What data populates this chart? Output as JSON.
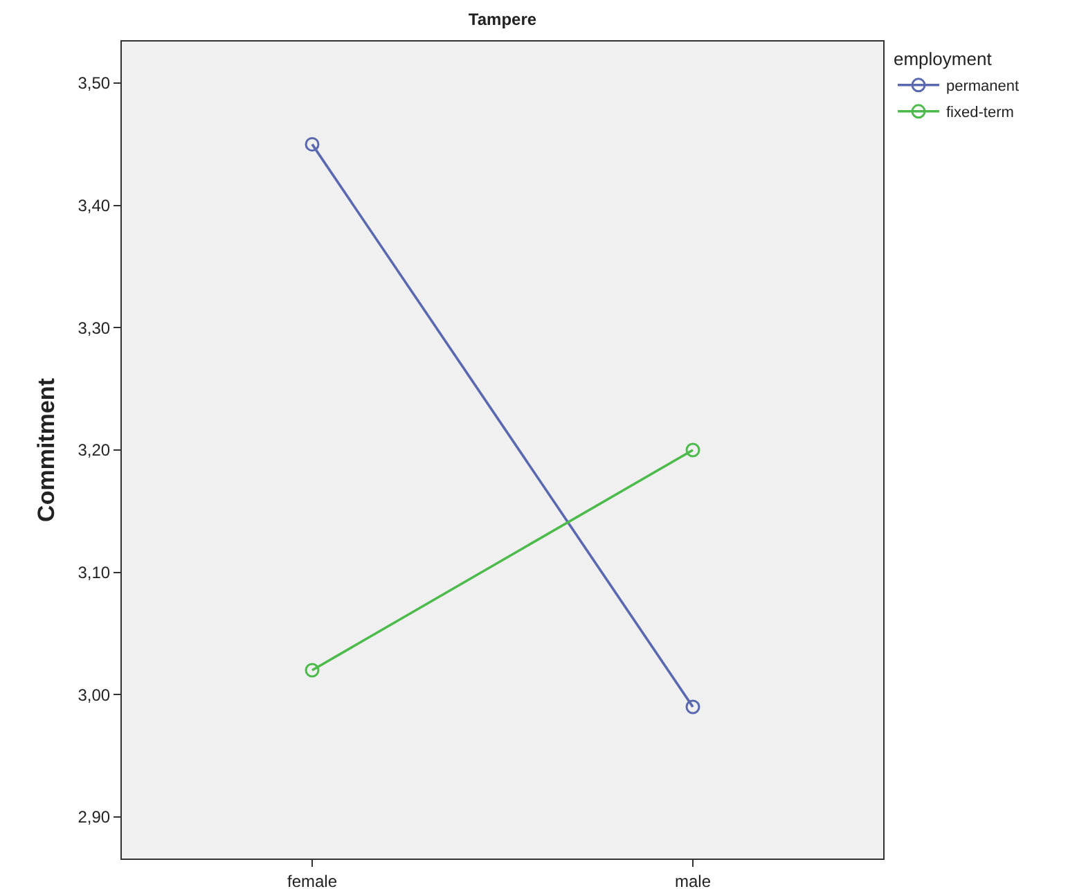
{
  "chart_data": {
    "type": "line",
    "title": "Tampere",
    "ylabel": "Commitment",
    "legend_title": "employment",
    "categories": [
      "female",
      "male"
    ],
    "series": [
      {
        "name": "permanent",
        "color": "#5a68b0",
        "values": [
          3.45,
          2.99
        ]
      },
      {
        "name": "fixed-term",
        "color": "#4cbb4c",
        "values": [
          3.02,
          3.2
        ]
      }
    ],
    "ylim": [
      2.866,
      3.534
    ],
    "yticks": [
      {
        "value": 2.9,
        "label": "2,90"
      },
      {
        "value": 3.0,
        "label": "3,00"
      },
      {
        "value": 3.1,
        "label": "3,10"
      },
      {
        "value": 3.2,
        "label": "3,20"
      },
      {
        "value": 3.3,
        "label": "3,30"
      },
      {
        "value": 3.4,
        "label": "3,40"
      },
      {
        "value": 3.5,
        "label": "3,50"
      }
    ],
    "marker": "circle",
    "line_style": "solid",
    "grid": false,
    "legend": "top right"
  }
}
